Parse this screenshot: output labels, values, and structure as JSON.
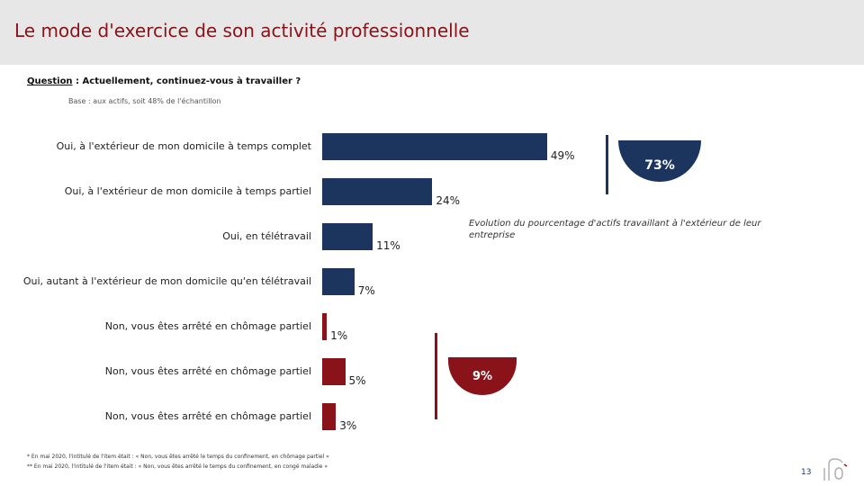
{
  "header": {
    "title": "Le mode d'exercice de son activité professionnelle"
  },
  "question": {
    "label": "Question",
    "text": " :  Actuellement, continuez-vous à travailler ?"
  },
  "base": "Base : aux actifs, soit 48% de l'échantillon",
  "chart_data": {
    "type": "bar",
    "orientation": "horizontal",
    "categories": [
      "Oui, à l'extérieur de mon domicile à temps complet",
      "Oui, à l'extérieur de mon domicile à temps partiel",
      "Oui, en télétravail",
      "Oui, autant à l'extérieur de mon domicile qu'en télétravail",
      "Non, vous êtes arrêté en chômage partiel",
      "Non, vous êtes arrêté en chômage partiel",
      "Non, vous êtes arrêté en chômage partiel"
    ],
    "values": [
      49,
      24,
      11,
      7,
      1,
      5,
      3
    ],
    "value_labels": [
      "49%",
      "24%",
      "11%",
      "7%",
      "1%",
      "5%",
      "3%"
    ],
    "unit": "%",
    "colors": [
      "#1b355f",
      "#1b355f",
      "#1b355f",
      "#1b355f",
      "#8a1219",
      "#8a1219",
      "#8a1219"
    ],
    "xlim": [
      0,
      100
    ],
    "annotations": {
      "total_yes": "73%",
      "total_no": "9%",
      "evolution_note": "Evolution du pourcentage d'actifs travaillant à l'extérieur de leur entreprise"
    }
  },
  "footnotes": [
    "* En mai 2020, l'intitulé de l'item était : « Non, vous êtes arrêté le temps du confinement, en chômage partiel »",
    "** En mai 2020, l'intitulé de l'item était : « Non, vous êtes arrêté le temps du confinement, en congé maladie »"
  ],
  "page_number": "13",
  "colors": {
    "primary": "#1b355f",
    "accent": "#8a1219",
    "header_bg": "#e7e7e7"
  }
}
